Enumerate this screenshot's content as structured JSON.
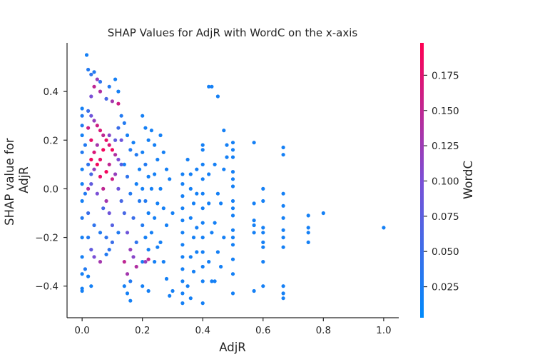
{
  "chart_data": {
    "type": "scatter",
    "title": "SHAP Values for AdjR with WordC on the x-axis",
    "xlabel": "AdjR",
    "ylabel": [
      "SHAP value for",
      "AdjR"
    ],
    "xlim": [
      -0.05,
      1.05
    ],
    "ylim": [
      -0.53,
      0.6
    ],
    "xticks": [
      0.0,
      0.2,
      0.4,
      0.6,
      0.8,
      1.0
    ],
    "xtick_labels": [
      "0.0",
      "0.2",
      "0.4",
      "0.6",
      "0.8",
      "1.0"
    ],
    "yticks": [
      -0.4,
      -0.2,
      0.0,
      0.2,
      0.4
    ],
    "ytick_labels": [
      "−0.4",
      "−0.2",
      "0.0",
      "0.2",
      "0.4"
    ],
    "grid": false,
    "colorbar": {
      "label": "WordC",
      "range": [
        0.003,
        0.198
      ],
      "ticks": [
        0.025,
        0.05,
        0.075,
        0.1,
        0.125,
        0.15,
        0.175
      ],
      "tick_labels": [
        "0.025",
        "0.050",
        "0.075",
        "0.100",
        "0.125",
        "0.150",
        "0.175"
      ],
      "color_low": "#008afb",
      "color_mid": "#7b4fd6",
      "color_high": "#ff0052"
    },
    "points": [
      {
        "x": 0.0,
        "y": 0.33,
        "c": 0.02
      },
      {
        "x": 0.0,
        "y": 0.3,
        "c": 0.03
      },
      {
        "x": 0.0,
        "y": 0.22,
        "c": 0.02
      },
      {
        "x": 0.0,
        "y": 0.15,
        "c": 0.03
      },
      {
        "x": 0.0,
        "y": 0.08,
        "c": 0.02
      },
      {
        "x": 0.0,
        "y": 0.02,
        "c": 0.02
      },
      {
        "x": 0.0,
        "y": -0.05,
        "c": 0.02
      },
      {
        "x": 0.0,
        "y": -0.12,
        "c": 0.03
      },
      {
        "x": 0.0,
        "y": -0.2,
        "c": 0.02
      },
      {
        "x": 0.0,
        "y": -0.28,
        "c": 0.02
      },
      {
        "x": 0.0,
        "y": -0.35,
        "c": 0.02
      },
      {
        "x": 0.0,
        "y": -0.41,
        "c": 0.02
      },
      {
        "x": 0.0,
        "y": -0.42,
        "c": 0.02
      },
      {
        "x": 0.0,
        "y": 0.26,
        "c": 0.03
      },
      {
        "x": 0.015,
        "y": 0.55,
        "c": 0.02
      },
      {
        "x": 0.02,
        "y": 0.49,
        "c": 0.03
      },
      {
        "x": 0.03,
        "y": 0.47,
        "c": 0.04
      },
      {
        "x": 0.04,
        "y": 0.48,
        "c": 0.03
      },
      {
        "x": 0.05,
        "y": 0.45,
        "c": 0.12
      },
      {
        "x": 0.04,
        "y": 0.42,
        "c": 0.15
      },
      {
        "x": 0.06,
        "y": 0.4,
        "c": 0.14
      },
      {
        "x": 0.03,
        "y": 0.38,
        "c": 0.1
      },
      {
        "x": 0.08,
        "y": 0.37,
        "c": 0.06
      },
      {
        "x": 0.1,
        "y": 0.36,
        "c": 0.13
      },
      {
        "x": 0.12,
        "y": 0.35,
        "c": 0.16
      },
      {
        "x": 0.09,
        "y": 0.42,
        "c": 0.03
      },
      {
        "x": 0.06,
        "y": 0.44,
        "c": 0.04
      },
      {
        "x": 0.12,
        "y": 0.4,
        "c": 0.02
      },
      {
        "x": 0.11,
        "y": 0.45,
        "c": 0.02
      },
      {
        "x": 0.02,
        "y": 0.32,
        "c": 0.05
      },
      {
        "x": 0.03,
        "y": 0.3,
        "c": 0.09
      },
      {
        "x": 0.04,
        "y": 0.28,
        "c": 0.12
      },
      {
        "x": 0.05,
        "y": 0.26,
        "c": 0.16
      },
      {
        "x": 0.06,
        "y": 0.24,
        "c": 0.17
      },
      {
        "x": 0.07,
        "y": 0.22,
        "c": 0.15
      },
      {
        "x": 0.08,
        "y": 0.2,
        "c": 0.18
      },
      {
        "x": 0.09,
        "y": 0.18,
        "c": 0.17
      },
      {
        "x": 0.1,
        "y": 0.16,
        "c": 0.19
      },
      {
        "x": 0.11,
        "y": 0.14,
        "c": 0.14
      },
      {
        "x": 0.12,
        "y": 0.12,
        "c": 0.1
      },
      {
        "x": 0.02,
        "y": 0.25,
        "c": 0.16
      },
      {
        "x": 0.03,
        "y": 0.2,
        "c": 0.18
      },
      {
        "x": 0.04,
        "y": 0.15,
        "c": 0.17
      },
      {
        "x": 0.05,
        "y": 0.1,
        "c": 0.19
      },
      {
        "x": 0.06,
        "y": 0.05,
        "c": 0.18
      },
      {
        "x": 0.07,
        "y": 0.0,
        "c": 0.15
      },
      {
        "x": 0.08,
        "y": -0.05,
        "c": 0.13
      },
      {
        "x": 0.09,
        "y": -0.1,
        "c": 0.09
      },
      {
        "x": 0.1,
        "y": -0.15,
        "c": 0.07
      },
      {
        "x": 0.04,
        "y": 0.08,
        "c": 0.12
      },
      {
        "x": 0.06,
        "y": 0.12,
        "c": 0.18
      },
      {
        "x": 0.08,
        "y": 0.07,
        "c": 0.19
      },
      {
        "x": 0.1,
        "y": 0.04,
        "c": 0.16
      },
      {
        "x": 0.03,
        "y": 0.02,
        "c": 0.08
      },
      {
        "x": 0.05,
        "y": -0.02,
        "c": 0.1
      },
      {
        "x": 0.07,
        "y": -0.08,
        "c": 0.06
      },
      {
        "x": 0.09,
        "y": 0.1,
        "c": 0.15
      },
      {
        "x": 0.11,
        "y": 0.06,
        "c": 0.12
      },
      {
        "x": 0.12,
        "y": 0.0,
        "c": 0.09
      },
      {
        "x": 0.02,
        "y": -0.1,
        "c": 0.05
      },
      {
        "x": 0.04,
        "y": -0.15,
        "c": 0.04
      },
      {
        "x": 0.06,
        "y": -0.18,
        "c": 0.03
      },
      {
        "x": 0.08,
        "y": -0.2,
        "c": 0.04
      },
      {
        "x": 0.1,
        "y": -0.22,
        "c": 0.05
      },
      {
        "x": 0.12,
        "y": -0.18,
        "c": 0.03
      },
      {
        "x": 0.02,
        "y": 0.1,
        "c": 0.04
      },
      {
        "x": 0.03,
        "y": 0.06,
        "c": 0.06
      },
      {
        "x": 0.01,
        "y": 0.18,
        "c": 0.03
      },
      {
        "x": 0.01,
        "y": -0.02,
        "c": 0.03
      },
      {
        "x": 0.02,
        "y": 0.0,
        "c": 0.14
      },
      {
        "x": 0.03,
        "y": 0.12,
        "c": 0.19
      },
      {
        "x": 0.05,
        "y": 0.18,
        "c": 0.13
      },
      {
        "x": 0.07,
        "y": 0.16,
        "c": 0.19
      },
      {
        "x": 0.09,
        "y": 0.22,
        "c": 0.11
      },
      {
        "x": 0.11,
        "y": 0.2,
        "c": 0.08
      },
      {
        "x": 0.12,
        "y": 0.25,
        "c": 0.05
      },
      {
        "x": 0.13,
        "y": 0.3,
        "c": 0.03
      },
      {
        "x": 0.13,
        "y": 0.2,
        "c": 0.09
      },
      {
        "x": 0.13,
        "y": 0.1,
        "c": 0.07
      },
      {
        "x": 0.13,
        "y": -0.05,
        "c": 0.06
      },
      {
        "x": 0.02,
        "y": -0.2,
        "c": 0.03
      },
      {
        "x": 0.03,
        "y": -0.25,
        "c": 0.08
      },
      {
        "x": 0.04,
        "y": -0.28,
        "c": 0.1
      },
      {
        "x": 0.06,
        "y": -0.3,
        "c": 0.13
      },
      {
        "x": 0.08,
        "y": -0.27,
        "c": 0.03
      },
      {
        "x": 0.09,
        "y": -0.25,
        "c": 0.04
      },
      {
        "x": 0.01,
        "y": -0.33,
        "c": 0.03
      },
      {
        "x": 0.02,
        "y": -0.36,
        "c": 0.02
      },
      {
        "x": 0.03,
        "y": -0.4,
        "c": 0.02
      },
      {
        "x": 0.14,
        "y": 0.27,
        "c": 0.03
      },
      {
        "x": 0.15,
        "y": 0.22,
        "c": 0.02
      },
      {
        "x": 0.16,
        "y": 0.16,
        "c": 0.03
      },
      {
        "x": 0.14,
        "y": 0.1,
        "c": 0.02
      },
      {
        "x": 0.15,
        "y": 0.05,
        "c": 0.04
      },
      {
        "x": 0.16,
        "y": -0.02,
        "c": 0.03
      },
      {
        "x": 0.14,
        "y": -0.1,
        "c": 0.06
      },
      {
        "x": 0.15,
        "y": -0.18,
        "c": 0.09
      },
      {
        "x": 0.16,
        "y": -0.25,
        "c": 0.12
      },
      {
        "x": 0.14,
        "y": -0.3,
        "c": 0.15
      },
      {
        "x": 0.15,
        "y": -0.35,
        "c": 0.13
      },
      {
        "x": 0.16,
        "y": -0.38,
        "c": 0.03
      },
      {
        "x": 0.14,
        "y": -0.4,
        "c": 0.02
      },
      {
        "x": 0.15,
        "y": -0.43,
        "c": 0.02
      },
      {
        "x": 0.16,
        "y": -0.46,
        "c": 0.02
      },
      {
        "x": 0.18,
        "y": -0.32,
        "c": 0.14
      },
      {
        "x": 0.17,
        "y": -0.28,
        "c": 0.11
      },
      {
        "x": 0.18,
        "y": -0.22,
        "c": 0.04
      },
      {
        "x": 0.17,
        "y": 0.19,
        "c": 0.02
      },
      {
        "x": 0.18,
        "y": 0.14,
        "c": 0.03
      },
      {
        "x": 0.19,
        "y": 0.08,
        "c": 0.02
      },
      {
        "x": 0.18,
        "y": 0.02,
        "c": 0.02
      },
      {
        "x": 0.19,
        "y": -0.05,
        "c": 0.03
      },
      {
        "x": 0.17,
        "y": -0.12,
        "c": 0.05
      },
      {
        "x": 0.2,
        "y": 0.3,
        "c": 0.02
      },
      {
        "x": 0.21,
        "y": 0.25,
        "c": 0.02
      },
      {
        "x": 0.22,
        "y": 0.2,
        "c": 0.02
      },
      {
        "x": 0.2,
        "y": 0.15,
        "c": 0.02
      },
      {
        "x": 0.21,
        "y": 0.1,
        "c": 0.03
      },
      {
        "x": 0.22,
        "y": 0.05,
        "c": 0.02
      },
      {
        "x": 0.2,
        "y": 0.0,
        "c": 0.02
      },
      {
        "x": 0.21,
        "y": -0.05,
        "c": 0.03
      },
      {
        "x": 0.22,
        "y": -0.1,
        "c": 0.02
      },
      {
        "x": 0.2,
        "y": -0.15,
        "c": 0.03
      },
      {
        "x": 0.21,
        "y": -0.2,
        "c": 0.02
      },
      {
        "x": 0.22,
        "y": -0.25,
        "c": 0.02
      },
      {
        "x": 0.2,
        "y": -0.3,
        "c": 0.02
      },
      {
        "x": 0.21,
        "y": -0.3,
        "c": 0.12
      },
      {
        "x": 0.22,
        "y": -0.29,
        "c": 0.15
      },
      {
        "x": 0.2,
        "y": -0.4,
        "c": 0.02
      },
      {
        "x": 0.22,
        "y": -0.42,
        "c": 0.02
      },
      {
        "x": 0.23,
        "y": 0.24,
        "c": 0.02
      },
      {
        "x": 0.24,
        "y": 0.18,
        "c": 0.02
      },
      {
        "x": 0.25,
        "y": 0.12,
        "c": 0.02
      },
      {
        "x": 0.24,
        "y": 0.06,
        "c": 0.02
      },
      {
        "x": 0.23,
        "y": 0.0,
        "c": 0.02
      },
      {
        "x": 0.25,
        "y": -0.06,
        "c": 0.02
      },
      {
        "x": 0.24,
        "y": -0.12,
        "c": 0.02
      },
      {
        "x": 0.23,
        "y": -0.18,
        "c": 0.02
      },
      {
        "x": 0.25,
        "y": -0.24,
        "c": 0.02
      },
      {
        "x": 0.24,
        "y": -0.3,
        "c": 0.02
      },
      {
        "x": 0.26,
        "y": 0.22,
        "c": 0.02
      },
      {
        "x": 0.27,
        "y": 0.15,
        "c": 0.02
      },
      {
        "x": 0.28,
        "y": 0.08,
        "c": 0.02
      },
      {
        "x": 0.26,
        "y": 0.0,
        "c": 0.02
      },
      {
        "x": 0.27,
        "y": -0.08,
        "c": 0.02
      },
      {
        "x": 0.28,
        "y": -0.15,
        "c": 0.02
      },
      {
        "x": 0.26,
        "y": -0.22,
        "c": 0.02
      },
      {
        "x": 0.27,
        "y": -0.3,
        "c": 0.02
      },
      {
        "x": 0.28,
        "y": -0.37,
        "c": 0.02
      },
      {
        "x": 0.29,
        "y": -0.44,
        "c": 0.02
      },
      {
        "x": 0.29,
        "y": 0.04,
        "c": 0.02
      },
      {
        "x": 0.3,
        "y": -0.1,
        "c": 0.02
      },
      {
        "x": 0.3,
        "y": -0.42,
        "c": 0.02
      },
      {
        "x": 0.333,
        "y": 0.02,
        "c": 0.02
      },
      {
        "x": 0.333,
        "y": -0.03,
        "c": 0.02
      },
      {
        "x": 0.333,
        "y": -0.08,
        "c": 0.02
      },
      {
        "x": 0.333,
        "y": -0.13,
        "c": 0.02
      },
      {
        "x": 0.333,
        "y": -0.18,
        "c": 0.02
      },
      {
        "x": 0.333,
        "y": -0.23,
        "c": 0.02
      },
      {
        "x": 0.333,
        "y": -0.28,
        "c": 0.02
      },
      {
        "x": 0.333,
        "y": -0.33,
        "c": 0.02
      },
      {
        "x": 0.333,
        "y": -0.38,
        "c": 0.02
      },
      {
        "x": 0.333,
        "y": -0.43,
        "c": 0.02
      },
      {
        "x": 0.333,
        "y": -0.47,
        "c": 0.02
      },
      {
        "x": 0.333,
        "y": 0.06,
        "c": 0.02
      },
      {
        "x": 0.35,
        "y": 0.12,
        "c": 0.02
      },
      {
        "x": 0.36,
        "y": 0.06,
        "c": 0.02
      },
      {
        "x": 0.36,
        "y": 0.0,
        "c": 0.02
      },
      {
        "x": 0.37,
        "y": -0.06,
        "c": 0.02
      },
      {
        "x": 0.36,
        "y": -0.12,
        "c": 0.02
      },
      {
        "x": 0.37,
        "y": -0.2,
        "c": 0.02
      },
      {
        "x": 0.36,
        "y": -0.28,
        "c": 0.02
      },
      {
        "x": 0.37,
        "y": -0.34,
        "c": 0.02
      },
      {
        "x": 0.35,
        "y": -0.4,
        "c": 0.02
      },
      {
        "x": 0.36,
        "y": -0.45,
        "c": 0.02
      },
      {
        "x": 0.38,
        "y": 0.08,
        "c": 0.02
      },
      {
        "x": 0.38,
        "y": -0.02,
        "c": 0.02
      },
      {
        "x": 0.38,
        "y": -0.16,
        "c": 0.02
      },
      {
        "x": 0.38,
        "y": -0.26,
        "c": 0.02
      },
      {
        "x": 0.4,
        "y": 0.16,
        "c": 0.02
      },
      {
        "x": 0.4,
        "y": 0.1,
        "c": 0.02
      },
      {
        "x": 0.4,
        "y": 0.04,
        "c": 0.02
      },
      {
        "x": 0.4,
        "y": -0.02,
        "c": 0.02
      },
      {
        "x": 0.4,
        "y": -0.08,
        "c": 0.02
      },
      {
        "x": 0.4,
        "y": -0.14,
        "c": 0.02
      },
      {
        "x": 0.4,
        "y": -0.2,
        "c": 0.02
      },
      {
        "x": 0.4,
        "y": -0.26,
        "c": 0.02
      },
      {
        "x": 0.4,
        "y": -0.32,
        "c": 0.02
      },
      {
        "x": 0.4,
        "y": -0.38,
        "c": 0.02
      },
      {
        "x": 0.4,
        "y": -0.47,
        "c": 0.02
      },
      {
        "x": 0.4,
        "y": 0.18,
        "c": 0.02
      },
      {
        "x": 0.42,
        "y": 0.42,
        "c": 0.02
      },
      {
        "x": 0.43,
        "y": 0.42,
        "c": 0.02
      },
      {
        "x": 0.42,
        "y": 0.06,
        "c": 0.02
      },
      {
        "x": 0.42,
        "y": -0.06,
        "c": 0.02
      },
      {
        "x": 0.43,
        "y": -0.18,
        "c": 0.02
      },
      {
        "x": 0.42,
        "y": -0.3,
        "c": 0.02
      },
      {
        "x": 0.43,
        "y": -0.38,
        "c": 0.02
      },
      {
        "x": 0.45,
        "y": 0.38,
        "c": 0.02
      },
      {
        "x": 0.44,
        "y": 0.1,
        "c": 0.02
      },
      {
        "x": 0.45,
        "y": -0.02,
        "c": 0.02
      },
      {
        "x": 0.44,
        "y": -0.14,
        "c": 0.02
      },
      {
        "x": 0.45,
        "y": -0.26,
        "c": 0.02
      },
      {
        "x": 0.44,
        "y": -0.38,
        "c": 0.02
      },
      {
        "x": 0.47,
        "y": 0.24,
        "c": 0.02
      },
      {
        "x": 0.47,
        "y": 0.08,
        "c": 0.02
      },
      {
        "x": 0.46,
        "y": -0.06,
        "c": 0.02
      },
      {
        "x": 0.47,
        "y": -0.2,
        "c": 0.02
      },
      {
        "x": 0.46,
        "y": -0.32,
        "c": 0.02
      },
      {
        "x": 0.48,
        "y": 0.18,
        "c": 0.02
      },
      {
        "x": 0.48,
        "y": 0.13,
        "c": 0.02
      },
      {
        "x": 0.5,
        "y": 0.19,
        "c": 0.02
      },
      {
        "x": 0.5,
        "y": 0.13,
        "c": 0.02
      },
      {
        "x": 0.5,
        "y": 0.07,
        "c": 0.02
      },
      {
        "x": 0.5,
        "y": 0.01,
        "c": 0.02
      },
      {
        "x": 0.5,
        "y": -0.05,
        "c": 0.02
      },
      {
        "x": 0.5,
        "y": -0.11,
        "c": 0.02
      },
      {
        "x": 0.5,
        "y": -0.17,
        "c": 0.02
      },
      {
        "x": 0.5,
        "y": -0.23,
        "c": 0.02
      },
      {
        "x": 0.5,
        "y": -0.29,
        "c": 0.02
      },
      {
        "x": 0.5,
        "y": -0.35,
        "c": 0.02
      },
      {
        "x": 0.5,
        "y": -0.43,
        "c": 0.02
      },
      {
        "x": 0.5,
        "y": 0.16,
        "c": 0.02
      },
      {
        "x": 0.5,
        "y": 0.04,
        "c": 0.02
      },
      {
        "x": 0.5,
        "y": -0.08,
        "c": 0.02
      },
      {
        "x": 0.5,
        "y": -0.2,
        "c": 0.02
      },
      {
        "x": 0.57,
        "y": 0.19,
        "c": 0.02
      },
      {
        "x": 0.57,
        "y": -0.06,
        "c": 0.02
      },
      {
        "x": 0.57,
        "y": -0.13,
        "c": 0.02
      },
      {
        "x": 0.57,
        "y": -0.15,
        "c": 0.02
      },
      {
        "x": 0.57,
        "y": -0.18,
        "c": 0.02
      },
      {
        "x": 0.57,
        "y": -0.42,
        "c": 0.02
      },
      {
        "x": 0.6,
        "y": 0.0,
        "c": 0.02
      },
      {
        "x": 0.6,
        "y": -0.05,
        "c": 0.02
      },
      {
        "x": 0.6,
        "y": -0.16,
        "c": 0.02
      },
      {
        "x": 0.6,
        "y": -0.18,
        "c": 0.02
      },
      {
        "x": 0.6,
        "y": -0.22,
        "c": 0.02
      },
      {
        "x": 0.6,
        "y": -0.24,
        "c": 0.02
      },
      {
        "x": 0.6,
        "y": -0.3,
        "c": 0.02
      },
      {
        "x": 0.6,
        "y": -0.4,
        "c": 0.02
      },
      {
        "x": 0.667,
        "y": 0.17,
        "c": 0.02
      },
      {
        "x": 0.667,
        "y": 0.14,
        "c": 0.02
      },
      {
        "x": 0.667,
        "y": -0.02,
        "c": 0.02
      },
      {
        "x": 0.667,
        "y": -0.07,
        "c": 0.02
      },
      {
        "x": 0.667,
        "y": -0.12,
        "c": 0.02
      },
      {
        "x": 0.667,
        "y": -0.17,
        "c": 0.02
      },
      {
        "x": 0.667,
        "y": -0.2,
        "c": 0.02
      },
      {
        "x": 0.667,
        "y": -0.24,
        "c": 0.02
      },
      {
        "x": 0.667,
        "y": -0.4,
        "c": 0.02
      },
      {
        "x": 0.667,
        "y": -0.45,
        "c": 0.02
      },
      {
        "x": 0.667,
        "y": -0.43,
        "c": 0.02
      },
      {
        "x": 0.75,
        "y": -0.11,
        "c": 0.02
      },
      {
        "x": 0.75,
        "y": -0.16,
        "c": 0.02
      },
      {
        "x": 0.75,
        "y": -0.18,
        "c": 0.02
      },
      {
        "x": 0.75,
        "y": -0.22,
        "c": 0.02
      },
      {
        "x": 0.8,
        "y": -0.1,
        "c": 0.02
      },
      {
        "x": 1.0,
        "y": -0.16,
        "c": 0.02
      }
    ]
  }
}
